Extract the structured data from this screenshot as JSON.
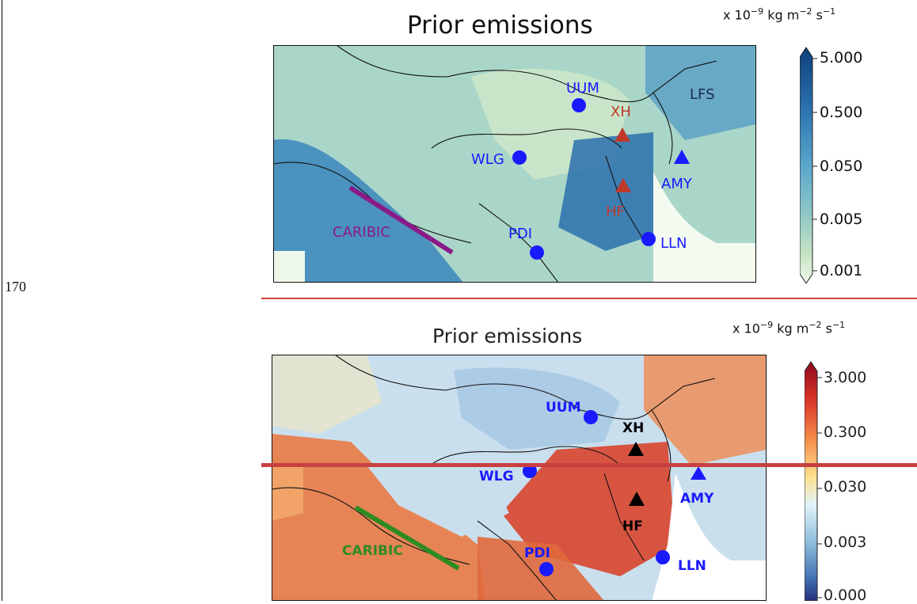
{
  "line_number": "170",
  "top_panel": {
    "title": "Prior emissions",
    "units": {
      "prefix": "x 10",
      "exp1": "−9",
      "mid": " kg m",
      "exp2": "−2",
      "mid2": " s",
      "exp3": "−1"
    },
    "colorbar_ticks": [
      "5.000",
      "0.500",
      "0.050",
      "0.005",
      "0.001"
    ],
    "colormap": [
      "#0d3f79",
      "#2a70ad",
      "#5ba6cc",
      "#8cc7c8",
      "#c4e3c3",
      "#eff8e9"
    ],
    "sites": [
      {
        "label": "UUM",
        "marker": "circle",
        "color": "#1a1aff"
      },
      {
        "label": "XH",
        "marker": "triangle",
        "color": "#c0392b"
      },
      {
        "label": "LFS",
        "marker": "label",
        "color": "#1a2a5a"
      },
      {
        "label": "WLG",
        "marker": "circle",
        "color": "#1a1aff"
      },
      {
        "label": "AMY",
        "marker": "triangle",
        "color": "#1a1aff"
      },
      {
        "label": "HF",
        "marker": "triangle",
        "color": "#c0392b"
      },
      {
        "label": "CARIBIC",
        "marker": "label",
        "color": "#8a1a8a"
      },
      {
        "label": "PDI",
        "marker": "circle",
        "color": "#1a1aff"
      },
      {
        "label": "LLN",
        "marker": "circle",
        "color": "#1a1aff"
      }
    ],
    "track_color": "#8a1a8a"
  },
  "bottom_panel": {
    "title": "Prior emissions",
    "units": {
      "prefix": "x 10",
      "exp1": "−9",
      "mid": " kg m",
      "exp2": "−2",
      "mid2": " s",
      "exp3": "−1"
    },
    "colorbar_ticks": [
      "3.000",
      "0.300",
      "0.030",
      "0.003",
      "0.000"
    ],
    "colormap": [
      "#8b0a1f",
      "#d73027",
      "#f48a4a",
      "#fee090",
      "#e0f3f8",
      "#91bfdb",
      "#4575b4",
      "#25317a"
    ],
    "sites": [
      {
        "label": "UUM",
        "marker": "circle",
        "color": "#1a1aff"
      },
      {
        "label": "XH",
        "marker": "triangle",
        "color": "#000000"
      },
      {
        "label": "WLG",
        "marker": "circle",
        "color": "#1a1aff"
      },
      {
        "label": "AMY",
        "marker": "triangle",
        "color": "#1a1aff"
      },
      {
        "label": "HF",
        "marker": "triangle",
        "color": "#000000"
      },
      {
        "label": "CARIBIC",
        "marker": "label",
        "color": "#2e8b22"
      },
      {
        "label": "PDI",
        "marker": "circle",
        "color": "#1a1aff"
      },
      {
        "label": "LLN",
        "marker": "circle",
        "color": "#1a1aff"
      }
    ],
    "track_color": "#2e8b22"
  }
}
